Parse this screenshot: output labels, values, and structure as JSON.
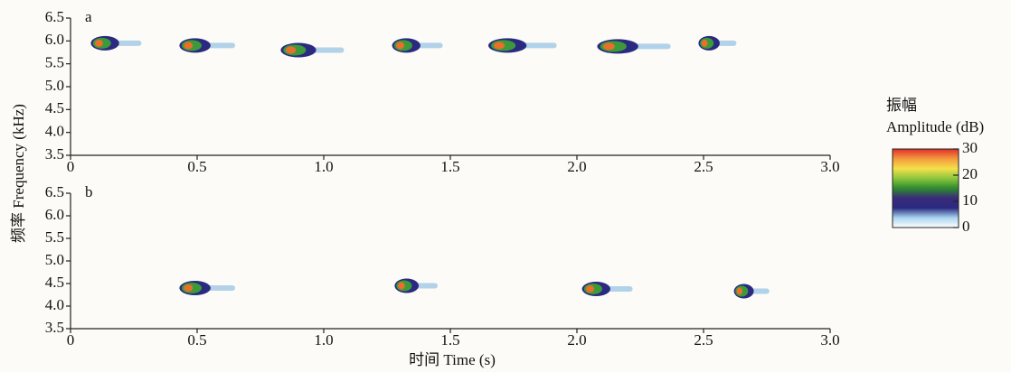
{
  "figure": {
    "xlabel": "时间 Time (s)",
    "ylabel": "频率 Frequency (kHz)",
    "colorbar": {
      "title": [
        "振幅",
        "Amplitude (dB)"
      ],
      "lim": [
        0,
        30
      ],
      "ticks": [
        0,
        10,
        20,
        30
      ],
      "colors": [
        "#ffffff",
        "#a8d4ee",
        "#2a2a80",
        "#3a2a7a",
        "#2e8b2e",
        "#8dc63f",
        "#f5e04a",
        "#f39a3c",
        "#e0302a"
      ]
    }
  },
  "chart_data": [
    {
      "type": "spectrogram",
      "label": "a",
      "xlim": [
        0,
        3
      ],
      "xticks": [
        0,
        0.5,
        {
          "value": 1,
          "label": "1.0"
        },
        1.5,
        {
          "value": 2,
          "label": "2.0"
        },
        2.5,
        {
          "value": 3,
          "label": "3.0"
        }
      ],
      "ylim": [
        3.5,
        6.5
      ],
      "yticks": [
        3.5,
        {
          "value": 4,
          "label": "4.0"
        },
        4.5,
        {
          "value": 5,
          "label": "5.0"
        },
        5.5,
        {
          "value": 6,
          "label": "6.0"
        },
        6.5
      ],
      "syllables": {
        "start": [
          0.08,
          0.43,
          0.83,
          1.27,
          1.65,
          2.08,
          2.48
        ],
        "end": [
          0.28,
          0.65,
          1.08,
          1.47,
          1.92,
          2.37,
          2.63
        ],
        "frequency": [
          5.95,
          5.9,
          5.8,
          5.9,
          5.9,
          5.88,
          5.95
        ]
      }
    },
    {
      "type": "spectrogram",
      "label": "b",
      "xlim": [
        0,
        3
      ],
      "xticks": [
        0,
        0.5,
        {
          "value": 1,
          "label": "1.0"
        },
        1.5,
        {
          "value": 2,
          "label": "2.0"
        },
        2.5,
        {
          "value": 3,
          "label": "3.0"
        }
      ],
      "ylim": [
        3.5,
        6.5
      ],
      "yticks": [
        3.5,
        {
          "value": 4,
          "label": "4.0"
        },
        4.5,
        {
          "value": 5,
          "label": "5.0"
        },
        5.5,
        {
          "value": 6,
          "label": "6.0"
        },
        6.5
      ],
      "syllables": {
        "start": [
          0.43,
          1.28,
          2.02,
          2.62
        ],
        "end": [
          0.65,
          1.45,
          2.22,
          2.76
        ],
        "frequency": [
          4.4,
          4.45,
          4.38,
          4.33
        ]
      }
    }
  ]
}
